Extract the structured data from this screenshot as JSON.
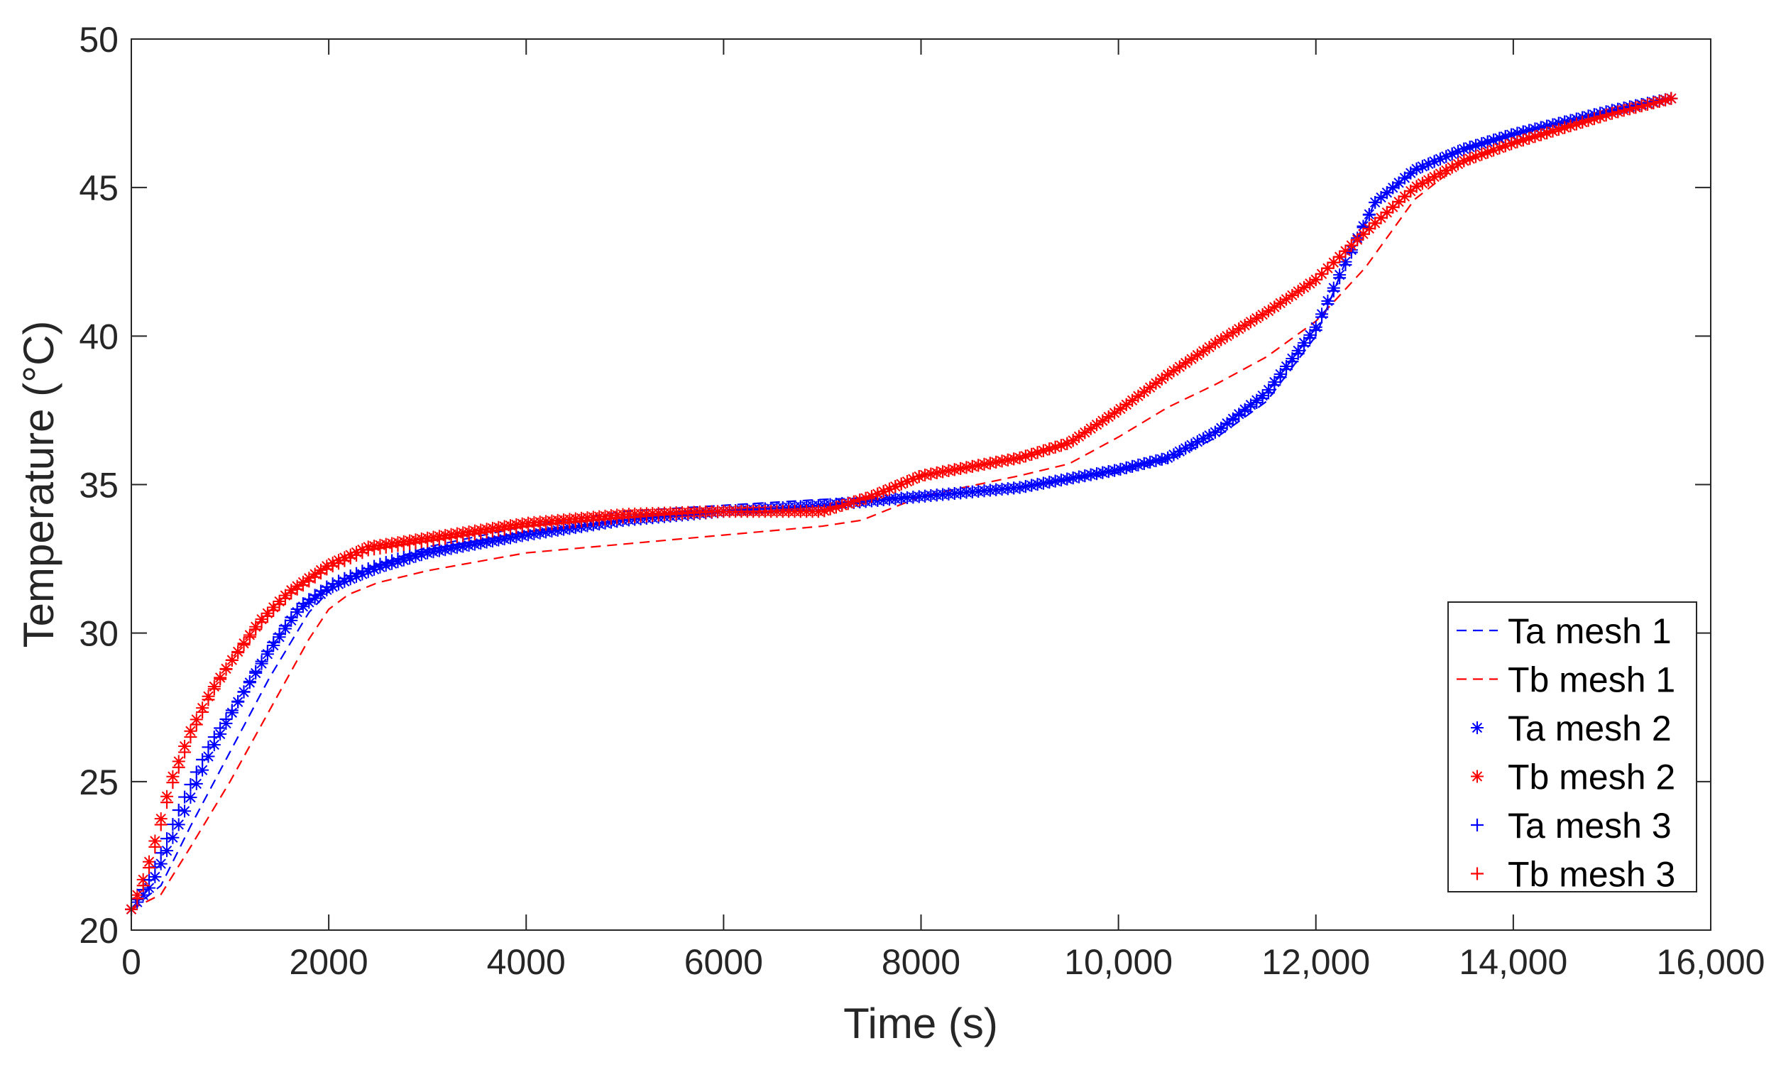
{
  "chart_data": {
    "type": "line",
    "xlabel": "Time (s)",
    "ylabel": "Temperature (°C)",
    "xlim": [
      0,
      16000
    ],
    "ylim": [
      20,
      50
    ],
    "xticks": [
      0,
      2000,
      4000,
      6000,
      8000,
      10000,
      12000,
      14000,
      16000
    ],
    "xtick_labels": [
      "0",
      "2000",
      "4000",
      "6000",
      "8000",
      "10,000",
      "12,000",
      "14,000",
      "16,000"
    ],
    "yticks": [
      20,
      25,
      30,
      35,
      40,
      45,
      50
    ],
    "ytick_labels": [
      "20",
      "25",
      "30",
      "35",
      "40",
      "45",
      "50"
    ],
    "grid": false,
    "legend_position": "bottom-right",
    "series": [
      {
        "name": "Ta mesh 1",
        "color": "#0000ff",
        "style": "dashed",
        "x": [
          0,
          300,
          600,
          1000,
          1400,
          1800,
          2000,
          2200,
          2500,
          3000,
          4000,
          5000,
          6000,
          7000,
          8000,
          9000,
          10000,
          10500,
          11000,
          11500,
          12000,
          12300,
          12600,
          13000,
          13500,
          14000,
          14500,
          15000,
          15600
        ],
        "y": [
          20.7,
          21.5,
          23.5,
          26.0,
          28.5,
          30.7,
          31.4,
          31.9,
          32.3,
          32.9,
          33.6,
          34.1,
          34.3,
          34.5,
          34.6,
          34.9,
          35.4,
          35.8,
          36.6,
          37.8,
          40.0,
          42.5,
          44.5,
          45.5,
          46.3,
          46.8,
          47.2,
          47.6,
          48.0
        ]
      },
      {
        "name": "Tb mesh 1",
        "color": "#ff0000",
        "style": "dashed",
        "x": [
          0,
          300,
          600,
          1000,
          1400,
          1800,
          2000,
          2200,
          2500,
          3000,
          4000,
          5000,
          6000,
          7000,
          7400,
          8000,
          9000,
          9500,
          10000,
          10500,
          11000,
          11500,
          12000,
          12500,
          13000,
          13500,
          14000,
          14500,
          15000,
          15600
        ],
        "y": [
          20.7,
          21.2,
          22.8,
          25.0,
          27.4,
          29.8,
          30.8,
          31.3,
          31.7,
          32.1,
          32.7,
          33.0,
          33.3,
          33.6,
          33.8,
          34.6,
          35.3,
          35.7,
          36.6,
          37.6,
          38.4,
          39.3,
          40.5,
          42.3,
          44.6,
          45.9,
          46.5,
          47.0,
          47.5,
          48.0
        ]
      },
      {
        "name": "Ta mesh 2",
        "color": "#0000ff",
        "style": "asterisk",
        "x": [
          0,
          200,
          500,
          800,
          1100,
          1400,
          1700,
          2000,
          2200,
          2500,
          3000,
          4000,
          5000,
          6000,
          7000,
          8000,
          9000,
          10000,
          10500,
          11000,
          11500,
          12000,
          12300,
          12600,
          13000,
          13500,
          14000,
          14500,
          15000,
          15600
        ],
        "y": [
          20.7,
          21.5,
          23.7,
          26.0,
          27.8,
          29.4,
          30.8,
          31.5,
          31.8,
          32.2,
          32.7,
          33.3,
          33.8,
          34.1,
          34.3,
          34.6,
          34.9,
          35.5,
          35.9,
          36.8,
          38.1,
          40.3,
          42.5,
          44.5,
          45.6,
          46.3,
          46.8,
          47.2,
          47.6,
          48.0
        ]
      },
      {
        "name": "Tb mesh 2",
        "color": "#ff0000",
        "style": "asterisk",
        "x": [
          0,
          100,
          200,
          400,
          600,
          800,
          1000,
          1300,
          1600,
          2000,
          2400,
          3000,
          4000,
          5000,
          6000,
          7000,
          7500,
          8000,
          9000,
          9500,
          10000,
          10500,
          11000,
          11500,
          12000,
          12500,
          13000,
          13500,
          14000,
          14500,
          15000,
          15600
        ],
        "y": [
          20.7,
          21.5,
          22.5,
          25.0,
          26.7,
          28.0,
          29.0,
          30.4,
          31.4,
          32.3,
          32.9,
          33.2,
          33.7,
          34.0,
          34.1,
          34.1,
          34.6,
          35.3,
          35.9,
          36.4,
          37.5,
          38.7,
          39.8,
          40.8,
          41.9,
          43.5,
          45.0,
          45.9,
          46.5,
          47.0,
          47.5,
          48.0
        ]
      },
      {
        "name": "Ta mesh 3",
        "color": "#0000ff",
        "style": "plus",
        "x": [
          0,
          200,
          500,
          800,
          1100,
          1400,
          1700,
          2000,
          2200,
          2500,
          3000,
          4000,
          5000,
          6000,
          7000,
          8000,
          9000,
          10000,
          10500,
          11000,
          11500,
          12000,
          12300,
          12600,
          13000,
          13500,
          14000,
          14500,
          15000,
          15600
        ],
        "y": [
          20.7,
          21.8,
          24.2,
          26.3,
          27.8,
          29.5,
          30.9,
          31.6,
          31.9,
          32.3,
          32.8,
          33.4,
          33.8,
          34.1,
          34.3,
          34.6,
          34.9,
          35.5,
          35.9,
          36.8,
          38.0,
          40.2,
          42.4,
          44.5,
          45.6,
          46.3,
          46.8,
          47.2,
          47.6,
          48.0
        ]
      },
      {
        "name": "Tb mesh 3",
        "color": "#ff0000",
        "style": "plus",
        "x": [
          0,
          100,
          200,
          400,
          600,
          800,
          1000,
          1300,
          1600,
          2000,
          2400,
          3000,
          4000,
          5000,
          6000,
          7000,
          7500,
          8000,
          9000,
          9500,
          10000,
          10500,
          11000,
          11500,
          12000,
          12500,
          13000,
          13500,
          14000,
          14500,
          15000,
          15600
        ],
        "y": [
          20.7,
          21.3,
          22.3,
          24.8,
          26.5,
          27.9,
          29.0,
          30.3,
          31.3,
          32.2,
          32.8,
          33.1,
          33.6,
          33.9,
          34.1,
          34.1,
          34.6,
          35.3,
          35.9,
          36.4,
          37.5,
          38.7,
          39.8,
          40.8,
          41.9,
          43.5,
          45.0,
          45.9,
          46.5,
          47.0,
          47.5,
          48.0
        ]
      }
    ]
  }
}
